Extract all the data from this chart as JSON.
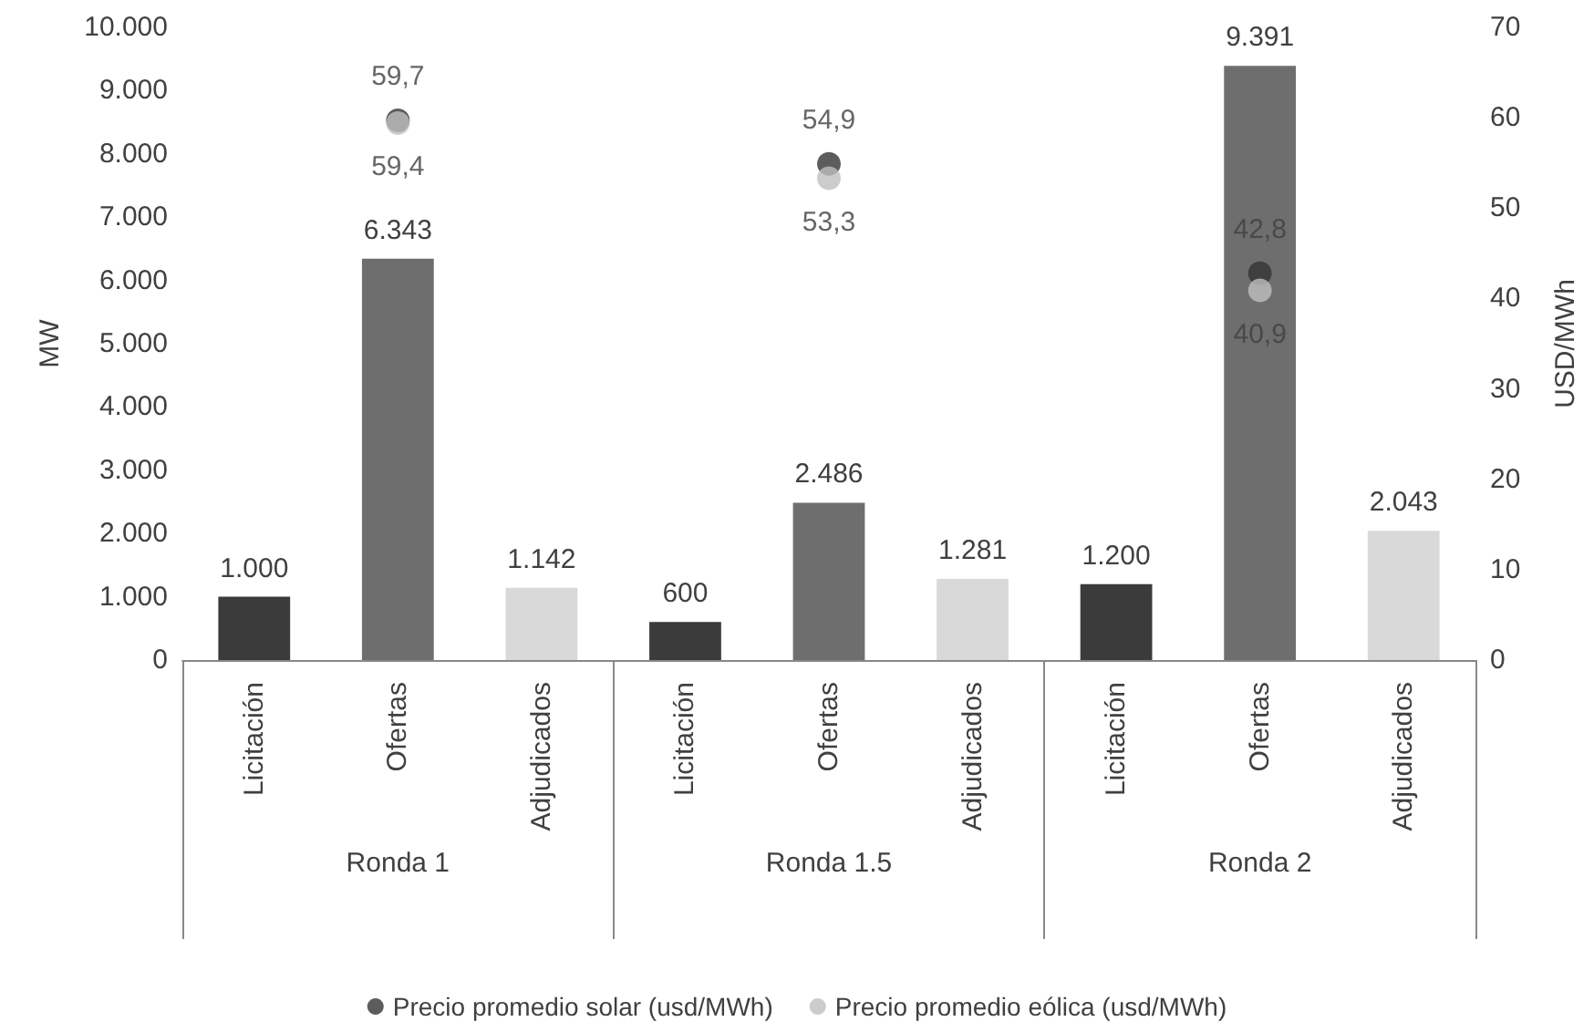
{
  "chart_data": {
    "type": "bar",
    "categories": [
      "Licitación",
      "Ofertas",
      "Adjudicados",
      "Licitación",
      "Ofertas",
      "Adjudicados",
      "Licitación",
      "Ofertas",
      "Adjudicados"
    ],
    "annotations": [
      "Ronda 1",
      "Ronda 1.5",
      "Ronda 2"
    ],
    "series": [
      {
        "colors": [
          "#3b3b3b",
          "#6e6e6e",
          "#d9d9d9",
          "#3b3b3b",
          "#6e6e6e",
          "#d9d9d9",
          "#3b3b3b",
          "#6e6e6e",
          "#d9d9d9"
        ],
        "values": [
          1000,
          6343,
          1142,
          600,
          2486,
          1281,
          1200,
          9391,
          2043
        ],
        "value_labels": [
          "1.000",
          "6.343",
          "1.142",
          "600",
          "2.486",
          "1.281",
          "1.200",
          "9.391",
          "2.043"
        ]
      },
      {
        "type": "scatter",
        "axis": "y2",
        "name": "Precio promedio solar (usd/MWh)",
        "color": "#333333",
        "values": [
          null,
          59.7,
          null,
          null,
          54.9,
          null,
          null,
          42.8,
          null
        ],
        "value_labels": [
          null,
          "59,7",
          null,
          null,
          "54,9",
          null,
          null,
          "42,8",
          null
        ]
      },
      {
        "type": "scatter",
        "axis": "y2",
        "name": "Precio promedio eólica (usd/MWh)",
        "color": "#bfbfbf",
        "values": [
          null,
          59.4,
          null,
          null,
          53.3,
          null,
          null,
          40.9,
          null
        ],
        "value_labels": [
          null,
          "59,4",
          null,
          null,
          "53,3",
          null,
          null,
          "40,9",
          null
        ]
      }
    ],
    "ylabel": "MW",
    "y2label": "USD/MWh",
    "ylim": [
      0,
      10000
    ],
    "yticks": [
      0,
      {
        "value": 1000,
        "label": "1.000"
      },
      {
        "value": 2000,
        "label": "2.000"
      },
      {
        "value": 3000,
        "label": "3.000"
      },
      {
        "value": 4000,
        "label": "4.000"
      },
      {
        "value": 5000,
        "label": "5.000"
      },
      {
        "value": 6000,
        "label": "6.000"
      },
      {
        "value": 7000,
        "label": "7.000"
      },
      {
        "value": 8000,
        "label": "8.000"
      },
      {
        "value": 9000,
        "label": "9.000"
      },
      {
        "value": 10000,
        "label": "10.000"
      }
    ],
    "y2lim": [
      0,
      70
    ],
    "y2ticks": [
      0,
      10,
      20,
      30,
      40,
      50,
      60,
      70
    ],
    "grid": false,
    "legend": "bottom",
    "marker": "circle"
  }
}
